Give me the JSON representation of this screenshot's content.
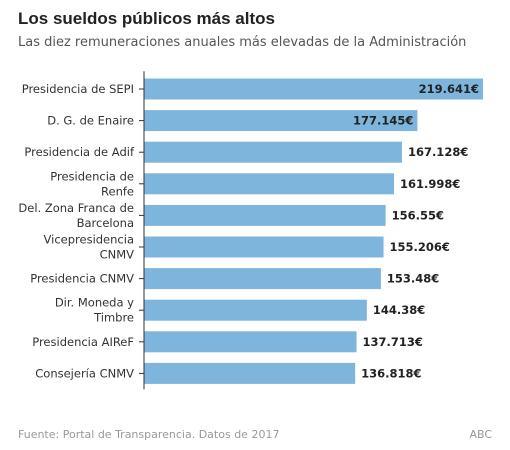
{
  "chart_data": {
    "type": "bar",
    "orientation": "horizontal",
    "title": "Los sueldos públicos más altos",
    "subtitle": "Las diez remuneraciones anuales más elevadas de la Administración",
    "categories": [
      [
        "Presidencia de SEPI"
      ],
      [
        "D. G. de Enaire"
      ],
      [
        "Presidencia de Adif"
      ],
      [
        "Presidencia de",
        "Renfe"
      ],
      [
        "Del. Zona Franca de",
        "Barcelona"
      ],
      [
        "Vicepresidencia",
        "CNMV"
      ],
      [
        "Presidencia CNMV"
      ],
      [
        "Dir. Moneda y",
        "Timbre"
      ],
      [
        "Presidencia AIReF"
      ],
      [
        "Consejería CNMV"
      ]
    ],
    "values": [
      219641,
      177145,
      167128,
      161998,
      156550,
      155206,
      153480,
      144380,
      137713,
      136818
    ],
    "labels": [
      "219.641€",
      "177.145€",
      "167.128€",
      "161.998€",
      "156.55€",
      "155.206€",
      "153.48€",
      "144.38€",
      "137.713€",
      "136.818€"
    ],
    "xlim": [
      0,
      219641
    ],
    "colors": {
      "bar": "#7db5dc",
      "label": "#222222",
      "axis": "#333333"
    }
  },
  "footer": {
    "source": "Fuente: Portal de Transparencia. Datos de 2017",
    "brand": "ABC"
  }
}
